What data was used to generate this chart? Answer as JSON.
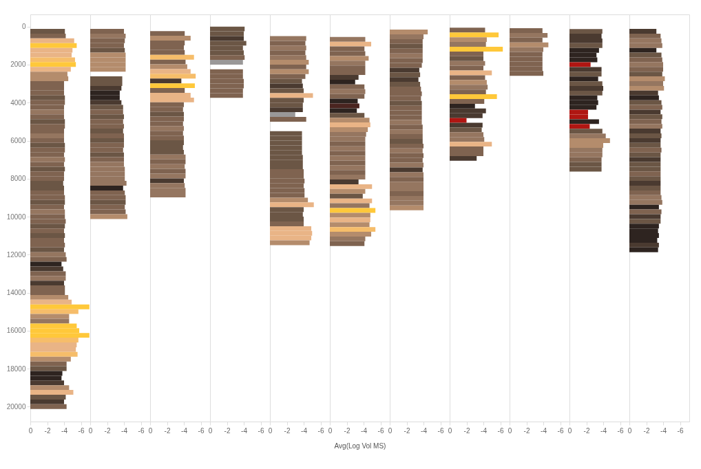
{
  "chart_data": [
    {
      "type": "bar",
      "orientation": "horizontal",
      "x": [
        245,
        495,
        745,
        995,
        1245,
        1495,
        1745,
        1995,
        2245,
        2495,
        2745,
        2995,
        3245,
        3495,
        3745,
        3995,
        4245,
        4495,
        4745,
        4995,
        5245,
        5495,
        5745,
        5995,
        6245,
        6495,
        6745,
        6995,
        7245,
        7495,
        7745,
        7995,
        8245,
        8495,
        8745,
        8995,
        9245,
        9495,
        9745,
        9995,
        10245,
        10495,
        10745,
        10995,
        11245,
        11495,
        11745,
        11995,
        12245,
        12495,
        12745,
        12995,
        13245,
        13495,
        13745,
        13995,
        14245,
        14495,
        14745,
        14995,
        15245,
        15495,
        15745,
        15995,
        16245,
        16495,
        16745,
        16995,
        17245,
        17495,
        17745,
        17995,
        18245,
        18495,
        18745,
        18995,
        19245,
        19495,
        19745,
        19995
      ],
      "values": [
        -4.1,
        -4.2,
        -5.2,
        -5.5,
        -5.0,
        -4.9,
        -5.3,
        -5.4,
        -4.8,
        -4.4,
        -4.5,
        -4.0,
        -4.0,
        -4.0,
        -4.1,
        -4.1,
        -4.0,
        -4.0,
        -4.0,
        -4.1,
        -4.1,
        -4.0,
        -4.0,
        -4.0,
        -4.1,
        -4.1,
        -4.0,
        -4.1,
        -4.0,
        -4.1,
        -4.0,
        -4.0,
        -3.9,
        -4.0,
        -4.0,
        -4.1,
        -4.1,
        -4.0,
        -4.1,
        -4.1,
        -4.2,
        -4.1,
        -4.0,
        -4.1,
        -4.0,
        -4.1,
        -4.0,
        -4.2,
        -4.3,
        -3.7,
        -3.9,
        -4.2,
        -4.2,
        -4.0,
        -4.1,
        -4.1,
        -4.5,
        -4.9,
        -7.0,
        -5.7,
        -4.6,
        -4.6,
        -5.5,
        -5.8,
        -7.0,
        -5.7,
        -5.5,
        -5.4,
        -5.6,
        -4.8,
        -4.3,
        -4.3,
        -3.8,
        -3.7,
        -4.0,
        -4.6,
        -5.1,
        -4.2,
        -4.0,
        -4.3
      ],
      "colors": [
        "#6b5645",
        "#7f6350",
        "#e9b486",
        "#ffc83a",
        "#e9b486",
        "#e9b486",
        "#f6bd6a",
        "#ffc83a",
        "#e9b486",
        "#b48c6c",
        "#b48c6c",
        "#7f6350",
        "#7f6350",
        "#7f6350",
        "#6b5645",
        "#7f6350",
        "#7f6350",
        "#957660",
        "#7f6350",
        "#6b5645",
        "#7f6350",
        "#7f6350",
        "#957660",
        "#7f6350",
        "#6b5645",
        "#7f6350",
        "#7f6350",
        "#957660",
        "#7f6350",
        "#6b5645",
        "#7f6350",
        "#7f6350",
        "#6b5645",
        "#6b5645",
        "#7f6350",
        "#7f6350",
        "#6b5645",
        "#7f6350",
        "#957660",
        "#7f6350",
        "#7f6350",
        "#6b5645",
        "#7f6350",
        "#6b5645",
        "#7f6350",
        "#7f6350",
        "#6b5645",
        "#957660",
        "#7f6350",
        "#2e2420",
        "#4a3a30",
        "#7f6350",
        "#957660",
        "#4a3a30",
        "#7f6350",
        "#7f6350",
        "#b48c6c",
        "#e9b486",
        "#ffc83a",
        "#f6bd6a",
        "#b48c6c",
        "#957660",
        "#ffc83a",
        "#ffc83a",
        "#ffc83a",
        "#f6bd6a",
        "#e9b486",
        "#e9b486",
        "#f6bd6a",
        "#b48c6c",
        "#7f6350",
        "#6b5645",
        "#2e2420",
        "#2e2420",
        "#4a3a30",
        "#b48c6c",
        "#e9b486",
        "#6b5645",
        "#4a3a30",
        "#7f6350"
      ],
      "xlim": [
        0,
        -7.1
      ],
      "xticks": [
        0,
        -2,
        -4,
        -6
      ],
      "ylim": [
        20780,
        -640
      ],
      "yticks": [
        0,
        2000,
        4000,
        6000,
        8000,
        10000,
        12000,
        14000,
        16000,
        18000,
        20000
      ]
    },
    {
      "type": "bar",
      "orientation": "horizontal",
      "x": [
        245,
        495,
        745,
        995,
        1245,
        1495,
        1745,
        1995,
        2245,
        2495,
        2745,
        2995,
        3245,
        3495,
        3745,
        3995,
        4245,
        4495,
        4745,
        4995,
        5245,
        5495,
        5745,
        5995,
        6245,
        6495,
        6745,
        6995,
        7245,
        7495,
        7745,
        7995,
        8245,
        8495,
        8745,
        8995,
        9245,
        9495,
        9745,
        9995
      ],
      "values": [
        -4.0,
        -4.2,
        -4.1,
        -4.0,
        -4.1,
        -4.2,
        -4.2,
        -4.2,
        -4.2,
        null,
        -3.8,
        -3.8,
        -3.7,
        -3.5,
        -3.5,
        -3.7,
        -3.9,
        -3.9,
        -4.0,
        -3.9,
        -4.0,
        -3.9,
        -4.0,
        -4.0,
        -4.0,
        -3.9,
        -4.0,
        -4.0,
        -4.0,
        -4.1,
        -4.1,
        -4.1,
        -4.3,
        -3.9,
        -4.1,
        -4.2,
        -4.2,
        -4.1,
        -4.2,
        -4.4
      ],
      "colors": [
        "#7f6350",
        "#957660",
        "#7f6350",
        "#7f6350",
        "#6b5645",
        "#b48c6c",
        "#b48c6c",
        "#b48c6c",
        "#b48c6c",
        null,
        "#6b5645",
        "#6b5645",
        "#4a3a30",
        "#2e2420",
        "#2e2420",
        "#4a3a30",
        "#6b5645",
        "#7f6350",
        "#6b5645",
        "#7f6350",
        "#7f6350",
        "#6b5645",
        "#7f6350",
        "#6b5645",
        "#7f6350",
        "#7f6350",
        "#6b5645",
        "#7f6350",
        "#957660",
        "#957660",
        "#957660",
        "#957660",
        "#957660",
        "#2e2420",
        "#7f6350",
        "#7f6350",
        "#6b5645",
        "#7f6350",
        "#7f6350",
        "#b48c6c"
      ],
      "xlim": [
        0,
        -7.1
      ],
      "xticks": [
        0,
        -2,
        -4,
        -6
      ],
      "ylim": [
        20780,
        -640
      ],
      "yticks": [
        0,
        2000,
        4000,
        6000,
        8000,
        10000,
        12000,
        14000,
        16000,
        18000,
        20000
      ],
      "tick_labels": "x"
    },
    {
      "type": "bar",
      "orientation": "horizontal",
      "x": [
        360,
        610,
        860,
        1110,
        1360,
        1610,
        1860,
        2110,
        2360,
        2610,
        2860,
        3110,
        3360,
        3610,
        3860,
        4110,
        4360,
        4610,
        4860,
        5110,
        5360,
        5610,
        5860,
        6110,
        6360,
        6610,
        6860,
        7110,
        7360,
        7610,
        7860,
        8110,
        8360,
        8610,
        8860
      ],
      "values": [
        -4.1,
        -4.8,
        -4.1,
        -4.0,
        -4.1,
        -5.2,
        -4.2,
        -4.4,
        -4.8,
        -5.4,
        -3.7,
        -5.3,
        -4.1,
        -4.8,
        -5.2,
        -4.0,
        -3.9,
        -4.0,
        -4.0,
        -3.9,
        -4.0,
        -3.9,
        -4.0,
        -4.0,
        -3.9,
        -4.0,
        -4.2,
        -4.2,
        -4.1,
        -4.2,
        -4.2,
        -4.0,
        -4.1,
        -4.2,
        -4.2
      ],
      "colors": [
        "#7f6350",
        "#b48c6c",
        "#7f6350",
        "#7f6350",
        "#7f6350",
        "#f6bd6a",
        "#7f6350",
        "#b48c6c",
        "#e9b486",
        "#f6bd6a",
        "#4a3a30",
        "#ffc83a",
        "#7f6350",
        "#e9b486",
        "#e9b486",
        "#7f6350",
        "#7f6350",
        "#6b5645",
        "#7f6350",
        "#7f6350",
        "#957660",
        "#7f6350",
        "#7f6350",
        "#6b5645",
        "#6b5645",
        "#6b5645",
        "#957660",
        "#7f6350",
        "#957660",
        "#7f6350",
        "#957660",
        "#4a3a30",
        "#957660",
        "#957660",
        "#957660"
      ],
      "xlim": [
        0,
        -7.1
      ],
      "xticks": [
        0,
        -2,
        -4,
        -6
      ],
      "ylim": [
        20780,
        -640
      ],
      "yticks": [
        0,
        2000,
        4000,
        6000,
        8000,
        10000,
        12000,
        14000,
        16000,
        18000,
        20000
      ],
      "tick_labels": "x"
    },
    {
      "type": "bar",
      "orientation": "horizontal",
      "x": [
        125,
        375,
        625,
        875,
        1125,
        1375,
        1625,
        1875,
        2125,
        2375,
        2625,
        2875,
        3125,
        3375,
        3625
      ],
      "values": [
        -4.1,
        -4.0,
        -4.0,
        -4.3,
        -3.9,
        -4.0,
        -4.1,
        -3.9,
        null,
        -3.9,
        -3.9,
        -4.0,
        -4.0,
        -3.9,
        -3.9
      ],
      "colors": [
        "#6b5645",
        "#6b5645",
        "#4a3a30",
        "#6b5645",
        "#6b5645",
        "#6b5645",
        "#7f6350",
        "#9a9898",
        null,
        "#7f6350",
        "#7f6350",
        "#7f6350",
        "#7f6350",
        "#7f6350",
        "#7f6350"
      ],
      "xlim": [
        0,
        -7.1
      ],
      "xticks": [
        0,
        -2,
        -4,
        -6
      ],
      "ylim": [
        20780,
        -640
      ],
      "yticks": [
        0,
        2000,
        4000,
        6000,
        8000,
        10000,
        12000,
        14000,
        16000,
        18000,
        20000
      ],
      "tick_labels": "x"
    },
    {
      "type": "bar",
      "orientation": "horizontal",
      "x": [
        625,
        875,
        1125,
        1375,
        1625,
        1875,
        2125,
        2375,
        2625,
        2875,
        3125,
        3375,
        3625,
        3875,
        4125,
        4375,
        4625,
        4875,
        5125,
        5375,
        5625,
        5875,
        6125,
        6375,
        6625,
        6875,
        7125,
        7375,
        7625,
        7875,
        8125,
        8375,
        8625,
        8875,
        9125,
        9375,
        9625,
        9875,
        10125,
        10375,
        10625,
        10875,
        11125,
        11375
      ],
      "values": [
        -4.3,
        -4.2,
        -4.3,
        -4.2,
        -4.3,
        -4.6,
        -4.3,
        -4.6,
        -4.2,
        -3.8,
        -3.9,
        -4.0,
        -5.1,
        -4.0,
        -3.9,
        -3.9,
        -3.0,
        -4.3,
        null,
        null,
        -3.8,
        -3.8,
        -3.8,
        -3.8,
        -3.8,
        -3.9,
        -3.9,
        -3.9,
        -4.0,
        -4.0,
        -4.1,
        -4.0,
        -4.1,
        -4.1,
        -4.5,
        -5.2,
        -4.0,
        -3.9,
        -4.0,
        -4.0,
        -4.9,
        -5.0,
        -4.9,
        -4.7
      ],
      "colors": [
        "#957660",
        "#7f6350",
        "#957660",
        "#7f6350",
        "#957660",
        "#b48c6c",
        "#7f6350",
        "#b48c6c",
        "#7f6350",
        "#6b5645",
        "#4a3a30",
        "#6b5645",
        "#e9b486",
        "#6b5645",
        "#6b5645",
        "#4a3a30",
        "#9a9898",
        "#7f6350",
        null,
        null,
        "#6b5645",
        "#6b5645",
        "#6b5645",
        "#6b5645",
        "#6b5645",
        "#6b5645",
        "#6b5645",
        "#6b5645",
        "#7f6350",
        "#7f6350",
        "#7f6350",
        "#7f6350",
        "#7f6350",
        "#7f6350",
        "#b48c6c",
        "#e9b486",
        "#6b5645",
        "#6b5645",
        "#6b5645",
        "#7f6350",
        "#e9b486",
        "#e9b486",
        "#e9b486",
        "#b48c6c"
      ],
      "xlim": [
        0,
        -7.1
      ],
      "xticks": [
        0,
        -2,
        -4,
        -6
      ],
      "ylim": [
        20780,
        -640
      ],
      "yticks": [
        0,
        2000,
        4000,
        6000,
        8000,
        10000,
        12000,
        14000,
        16000,
        18000,
        20000
      ],
      "tick_labels": "x"
    },
    {
      "type": "bar",
      "orientation": "horizontal",
      "xlabel": "Avg(Log Vol MS)",
      "x": [
        670,
        920,
        1170,
        1420,
        1670,
        1920,
        2170,
        2420,
        2670,
        2920,
        3170,
        3420,
        3670,
        3920,
        4170,
        4420,
        4670,
        4920,
        5170,
        5420,
        5670,
        5920,
        6170,
        6420,
        6670,
        6920,
        7170,
        7420,
        7670,
        7920,
        8170,
        8420,
        8670,
        8920,
        9170,
        9420,
        9670,
        9920,
        10170,
        10420,
        10670,
        10920,
        11170,
        11420
      ],
      "values": [
        -4.2,
        -4.9,
        -4.1,
        -4.2,
        -4.6,
        -4.2,
        -4.2,
        -4.2,
        -3.4,
        -3.0,
        -4.1,
        -4.2,
        -4.1,
        -3.3,
        -3.5,
        -3.2,
        -4.1,
        -4.7,
        -4.8,
        -4.5,
        -4.3,
        -4.2,
        -4.2,
        -4.2,
        -4.2,
        -4.2,
        -4.2,
        -4.2,
        -4.2,
        -4.2,
        -3.4,
        -5.0,
        -4.2,
        -3.9,
        -5.0,
        -4.7,
        -5.4,
        -4.8,
        -4.8,
        -4.7,
        -5.4,
        -4.9,
        -4.2,
        -4.1
      ],
      "colors": [
        "#957660",
        "#e9b486",
        "#7f6350",
        "#7f6350",
        "#b48c6c",
        "#957660",
        "#7f6350",
        "#7f6350",
        "#4a3a30",
        "#2e2420",
        "#7f6350",
        "#957660",
        "#7f6350",
        "#2e2420",
        "#4a2520",
        "#2e2420",
        "#6b5645",
        "#b48c6c",
        "#e9b486",
        "#b48c6c",
        "#957660",
        "#957660",
        "#7f6350",
        "#957660",
        "#7f6350",
        "#957660",
        "#7f6350",
        "#957660",
        "#7f6350",
        "#957660",
        "#4a3a30",
        "#e9b486",
        "#b48c6c",
        "#6b5645",
        "#e9b486",
        "#957660",
        "#ffc83a",
        "#b48c6c",
        "#e9b486",
        "#b48c6c",
        "#f6bd6a",
        "#b48c6c",
        "#957660",
        "#7f6350"
      ],
      "xlim": [
        0,
        -7.1
      ],
      "xticks": [
        0,
        -2,
        -4,
        -6
      ],
      "ylim": [
        20780,
        -640
      ],
      "yticks": [
        0,
        2000,
        4000,
        6000,
        8000,
        10000,
        12000,
        14000,
        16000,
        18000,
        20000
      ],
      "tick_labels": "x"
    },
    {
      "type": "bar",
      "orientation": "horizontal",
      "x": [
        285,
        535,
        785,
        1035,
        1285,
        1535,
        1785,
        2035,
        2285,
        2535,
        2785,
        3035,
        3285,
        3535,
        3785,
        4035,
        4285,
        4535,
        4785,
        5035,
        5285,
        5535,
        5785,
        6035,
        6285,
        6535,
        6785,
        7035,
        7285,
        7535,
        7785,
        8035,
        8285,
        8535,
        8785,
        9035,
        9285,
        9535
      ],
      "values": [
        -4.5,
        -4.0,
        -3.9,
        -3.9,
        -3.9,
        -3.9,
        -3.9,
        -3.8,
        -3.5,
        -3.6,
        -3.4,
        -3.6,
        -3.7,
        -3.8,
        -3.7,
        -3.8,
        -3.8,
        -3.8,
        -3.8,
        -3.8,
        -3.9,
        -3.9,
        -3.9,
        -3.9,
        -4.0,
        -3.9,
        -4.0,
        -3.9,
        -4.0,
        -3.9,
        -4.0,
        -4.0,
        -4.0,
        -4.0,
        -4.0,
        -4.0,
        -4.0,
        -4.0
      ],
      "colors": [
        "#b48c6c",
        "#957660",
        "#7f6350",
        "#6b5645",
        "#7f6350",
        "#957660",
        "#7f6350",
        "#7f6350",
        "#4a3a30",
        "#6b5645",
        "#4a3a30",
        "#6b5645",
        "#7f6350",
        "#7f6350",
        "#7f6350",
        "#6b5645",
        "#7f6350",
        "#7f6350",
        "#7f6350",
        "#957660",
        "#7f6350",
        "#957660",
        "#7f6350",
        "#6b5645",
        "#7f6350",
        "#957660",
        "#7f6350",
        "#7f6350",
        "#957660",
        "#4a3a30",
        "#957660",
        "#7f6350",
        "#957660",
        "#957660",
        "#7f6350",
        "#957660",
        "#957660",
        "#b48c6c"
      ],
      "xlim": [
        0,
        -7.1
      ],
      "xticks": [
        0,
        -2,
        -4,
        -6
      ],
      "ylim": [
        20780,
        -640
      ],
      "yticks": [
        0,
        2000,
        4000,
        6000,
        8000,
        10000,
        12000,
        14000,
        16000,
        18000,
        20000
      ],
      "tick_labels": "x"
    },
    {
      "type": "bar",
      "orientation": "horizontal",
      "x": [
        185,
        435,
        685,
        935,
        1185,
        1435,
        1685,
        1935,
        2185,
        2435,
        2685,
        2935,
        3185,
        3435,
        3685,
        3935,
        4185,
        4435,
        4685,
        4935,
        5185,
        5435,
        5685,
        5935,
        6185,
        6435,
        6685,
        6935
      ],
      "values": [
        -4.2,
        -5.8,
        -4.4,
        -4.3,
        -6.3,
        -4.0,
        -4.0,
        -4.2,
        -4.0,
        -5.0,
        -4.2,
        -4.4,
        -4.5,
        -4.3,
        -5.6,
        -4.1,
        -3.0,
        -4.3,
        -3.9,
        -2.0,
        -3.9,
        -3.8,
        -4.0,
        -4.1,
        -5.0,
        -4.0,
        -4.0,
        -3.2
      ],
      "colors": [
        "#7f6350",
        "#ffc83a",
        "#b48c6c",
        "#957660",
        "#ffc83a",
        "#7f6350",
        "#6b5645",
        "#957660",
        "#7f6350",
        "#e9b486",
        "#7f6350",
        "#b48c6c",
        "#957660",
        "#7f6350",
        "#ffc83a",
        "#7f6350",
        "#2e2420",
        "#4a3a30",
        "#4a3a30",
        "#b01612",
        "#4a3a30",
        "#6b5645",
        "#957660",
        "#957660",
        "#e9b486",
        "#7f6350",
        "#7f6350",
        "#4a3a30"
      ],
      "xlim": [
        0,
        -7.1
      ],
      "xticks": [
        0,
        -2,
        -4,
        -6
      ],
      "ylim": [
        20780,
        -640
      ],
      "yticks": [
        0,
        2000,
        4000,
        6000,
        8000,
        10000,
        12000,
        14000,
        16000,
        18000,
        20000
      ],
      "tick_labels": "x"
    },
    {
      "type": "bar",
      "orientation": "horizontal",
      "x": [
        210,
        460,
        710,
        960,
        1210,
        1460,
        1710,
        1960,
        2210,
        2460
      ],
      "values": [
        -3.9,
        -4.5,
        -3.9,
        -4.6,
        -4.0,
        -3.9,
        -3.9,
        -3.9,
        -3.9,
        -4.0
      ],
      "colors": [
        "#7f6350",
        "#957660",
        "#7f6350",
        "#b48c6c",
        "#957660",
        "#7f6350",
        "#7f6350",
        "#7f6350",
        "#7f6350",
        "#7f6350"
      ],
      "xlim": [
        0,
        -7.1
      ],
      "xticks": [
        0,
        -2,
        -4,
        -6
      ],
      "ylim": [
        20780,
        -640
      ],
      "yticks": [
        0,
        2000,
        4000,
        6000,
        8000,
        10000,
        12000,
        14000,
        16000,
        18000,
        20000
      ],
      "tick_labels": "x"
    },
    {
      "type": "bar",
      "orientation": "horizontal",
      "x": [
        250,
        500,
        750,
        1000,
        1250,
        1500,
        1750,
        2000,
        2250,
        2500,
        2750,
        3000,
        3250,
        3500,
        3750,
        4000,
        4250,
        4500,
        4750,
        5000,
        5250,
        5500,
        5750,
        6000,
        6250,
        6500,
        6750,
        7000,
        7250,
        7500
      ],
      "values": [
        -3.9,
        -3.8,
        -3.9,
        -3.9,
        -3.5,
        -3.2,
        -3.3,
        -2.5,
        -3.8,
        -3.8,
        -3.4,
        -3.9,
        -4.0,
        -3.9,
        -3.3,
        -3.4,
        -3.2,
        -2.2,
        -2.2,
        -3.5,
        -2.4,
        -3.9,
        -4.3,
        -4.8,
        -4.0,
        -3.9,
        -3.9,
        -3.8,
        -3.8,
        -3.8
      ],
      "colors": [
        "#6b5645",
        "#4a3a30",
        "#4a3a30",
        "#6b5645",
        "#2e2420",
        "#2e2420",
        "#2e2420",
        "#b01612",
        "#4a3a30",
        "#6b5645",
        "#2e2420",
        "#6b5645",
        "#4a3a30",
        "#6b5645",
        "#2e2420",
        "#2e2420",
        "#2e2420",
        "#b01612",
        "#b01612",
        "#2e2420",
        "#b01612",
        "#6b5645",
        "#957660",
        "#b48c6c",
        "#b48c6c",
        "#957660",
        "#957660",
        "#7f6350",
        "#6b5645",
        "#6b5645"
      ],
      "xlim": [
        0,
        -7.1
      ],
      "xticks": [
        0,
        -2,
        -4,
        -6
      ],
      "ylim": [
        20780,
        -640
      ],
      "yticks": [
        0,
        2000,
        4000,
        6000,
        8000,
        10000,
        12000,
        14000,
        16000,
        18000,
        20000
      ],
      "tick_labels": "x"
    },
    {
      "type": "bar",
      "orientation": "horizontal",
      "x": [
        245,
        495,
        745,
        995,
        1245,
        1495,
        1745,
        1995,
        2245,
        2495,
        2745,
        2995,
        3245,
        3495,
        3745,
        3995,
        4245,
        4495,
        4745,
        4995,
        5245,
        5495,
        5745,
        5995,
        6245,
        6495,
        6745,
        6995,
        7245,
        7495,
        7745,
        7995,
        8245,
        8495,
        8745,
        8995,
        9245,
        9495,
        9745,
        9995,
        10245,
        10495,
        10745,
        10995,
        11245,
        11495,
        11745
      ],
      "values": [
        -3.2,
        -3.7,
        -3.8,
        -3.9,
        -3.2,
        -3.8,
        -3.9,
        -4.0,
        -4.0,
        -3.9,
        -4.2,
        -4.0,
        -4.1,
        -3.4,
        -3.5,
        -3.8,
        -3.9,
        -3.7,
        -3.9,
        -3.8,
        -3.9,
        -3.7,
        -3.8,
        -3.7,
        -3.7,
        -3.8,
        -3.7,
        -3.7,
        -3.7,
        -3.7,
        -3.7,
        -3.7,
        -3.7,
        -3.7,
        -3.7,
        -3.8,
        -3.9,
        -3.5,
        -3.8,
        -3.7,
        -3.7,
        -3.5,
        -3.4,
        -3.5,
        -3.3,
        -3.5,
        -3.4
      ],
      "colors": [
        "#4a3a30",
        "#7f6350",
        "#957660",
        "#957660",
        "#2e2420",
        "#6b5645",
        "#7f6350",
        "#957660",
        "#7f6350",
        "#6b5645",
        "#b48c6c",
        "#957660",
        "#b48c6c",
        "#4a3a30",
        "#2e2420",
        "#6b5645",
        "#7f6350",
        "#4a3a30",
        "#6b5645",
        "#7f6350",
        "#957660",
        "#4a3a30",
        "#6b5645",
        "#4a3a30",
        "#6b5645",
        "#7f6350",
        "#6b5645",
        "#4a3a30",
        "#6b5645",
        "#6b5645",
        "#7f6350",
        "#6b5645",
        "#4a3a30",
        "#6b5645",
        "#7f6350",
        "#957660",
        "#957660",
        "#2e2420",
        "#7f6350",
        "#4a3a30",
        "#6b5645",
        "#2e2420",
        "#2e2420",
        "#2e2420",
        "#2e2420",
        "#4a3a30",
        "#2e2420"
      ],
      "xlim": [
        0,
        -7.1
      ],
      "xticks": [
        0,
        -2,
        -4,
        -6
      ],
      "ylim": [
        20780,
        -640
      ],
      "yticks": [
        0,
        2000,
        4000,
        6000,
        8000,
        10000,
        12000,
        14000,
        16000,
        18000,
        20000
      ],
      "tick_labels": "x"
    }
  ]
}
